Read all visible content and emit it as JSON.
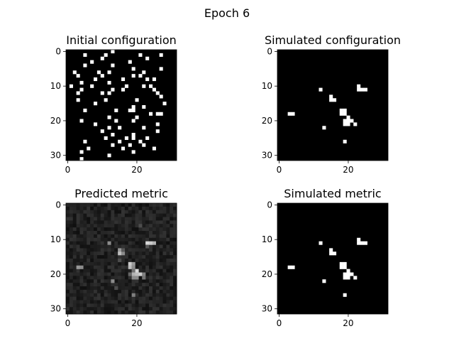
{
  "figure": {
    "suptitle": "Epoch 6"
  },
  "chart_data": [
    {
      "type": "heatmap",
      "title": "Initial configuration",
      "xlim": [
        -0.5,
        31.5
      ],
      "ylim": [
        31.5,
        -0.5
      ],
      "xticks": [
        0,
        20
      ],
      "yticks": [
        0,
        10,
        20,
        30
      ],
      "colormap": "gray",
      "background_value": 0,
      "cells": [
        [
          29,
          4
        ],
        [
          31,
          4
        ],
        [
          30,
          12
        ],
        [
          29,
          19
        ],
        [
          27,
          13
        ],
        [
          25,
          23
        ],
        [
          28,
          6
        ],
        [
          28,
          16
        ],
        [
          28,
          25
        ],
        [
          27,
          18
        ],
        [
          27,
          22
        ],
        [
          26,
          5
        ],
        [
          26,
          15
        ],
        [
          26,
          21
        ],
        [
          25,
          11
        ],
        [
          25,
          17
        ],
        [
          25,
          19
        ],
        [
          23,
          10
        ],
        [
          24,
          19
        ],
        [
          24,
          13
        ],
        [
          22,
          12
        ],
        [
          22,
          15
        ],
        [
          21,
          8
        ],
        [
          21,
          26
        ],
        [
          20,
          4
        ],
        [
          20,
          14
        ],
        [
          20,
          19
        ],
        [
          19,
          12
        ],
        [
          19,
          20
        ],
        [
          18,
          24
        ],
        [
          18,
          26
        ],
        [
          18,
          27
        ],
        [
          17,
          5
        ],
        [
          17,
          14
        ],
        [
          17,
          18
        ],
        [
          17,
          19
        ],
        [
          16,
          19
        ],
        [
          16,
          22
        ],
        [
          15,
          28
        ],
        [
          15,
          8
        ],
        [
          14,
          3
        ],
        [
          14,
          11
        ],
        [
          14,
          20
        ],
        [
          13,
          27
        ],
        [
          12,
          10
        ],
        [
          12,
          12
        ],
        [
          12,
          26
        ],
        [
          11,
          4
        ],
        [
          11,
          13
        ],
        [
          11,
          16
        ],
        [
          11,
          25
        ],
        [
          10,
          24
        ],
        [
          10,
          7
        ],
        [
          10,
          1
        ],
        [
          10,
          17
        ],
        [
          10,
          22
        ],
        [
          9,
          4
        ],
        [
          9,
          12
        ],
        [
          8,
          8
        ],
        [
          8,
          16
        ],
        [
          8,
          23
        ],
        [
          8,
          25
        ],
        [
          7,
          19
        ],
        [
          7,
          10
        ],
        [
          7,
          21
        ],
        [
          6,
          2
        ],
        [
          6,
          12
        ],
        [
          6,
          22
        ],
        [
          5,
          19
        ],
        [
          4,
          13
        ],
        [
          4,
          5
        ],
        [
          3,
          7
        ],
        [
          3,
          18
        ],
        [
          2,
          10
        ],
        [
          2,
          23
        ],
        [
          1,
          5
        ],
        [
          1,
          11
        ],
        [
          1,
          21
        ],
        [
          1,
          27
        ],
        [
          0,
          13
        ],
        [
          5,
          27
        ],
        [
          6,
          9
        ],
        [
          7,
          3
        ],
        [
          12,
          3
        ],
        [
          22,
          22
        ],
        [
          23,
          26
        ]
      ]
    },
    {
      "type": "heatmap",
      "title": "Simulated configuration",
      "xlim": [
        -0.5,
        31.5
      ],
      "ylim": [
        31.5,
        -0.5
      ],
      "xticks": [
        0,
        20
      ],
      "yticks": [
        0,
        10,
        20,
        30
      ],
      "colormap": "gray",
      "background_value": 0,
      "cells": [
        [
          10,
          23
        ],
        [
          11,
          23
        ],
        [
          11,
          24
        ],
        [
          11,
          25
        ],
        [
          11,
          12
        ],
        [
          13,
          15
        ],
        [
          14,
          15
        ],
        [
          14,
          16
        ],
        [
          17,
          18
        ],
        [
          17,
          19
        ],
        [
          18,
          18
        ],
        [
          18,
          19
        ],
        [
          18,
          3
        ],
        [
          18,
          4
        ],
        [
          19,
          20
        ],
        [
          20,
          19
        ],
        [
          20,
          20
        ],
        [
          20,
          21
        ],
        [
          21,
          19
        ],
        [
          21,
          20
        ],
        [
          21,
          22
        ],
        [
          22,
          13
        ],
        [
          26,
          19
        ]
      ]
    },
    {
      "type": "heatmap",
      "title": "Predicted metric",
      "xlim": [
        -0.5,
        31.5
      ],
      "ylim": [
        31.5,
        -0.5
      ],
      "xticks": [
        0,
        20
      ],
      "yticks": [
        0,
        10,
        20,
        30
      ],
      "colormap": "gray",
      "background_value": 0.13,
      "noise": 0.07,
      "cells": [
        [
          11,
          23,
          0.85
        ],
        [
          11,
          24,
          0.8
        ],
        [
          11,
          25,
          0.7
        ],
        [
          11,
          12,
          0.55
        ],
        [
          12,
          23,
          0.35
        ],
        [
          13,
          15,
          0.6
        ],
        [
          14,
          15,
          0.75
        ],
        [
          14,
          16,
          0.55
        ],
        [
          13,
          16,
          0.35
        ],
        [
          17,
          18,
          0.8
        ],
        [
          17,
          19,
          0.6
        ],
        [
          18,
          18,
          0.75
        ],
        [
          18,
          19,
          0.55
        ],
        [
          18,
          3,
          0.6
        ],
        [
          18,
          4,
          0.55
        ],
        [
          19,
          20,
          0.85
        ],
        [
          19,
          19,
          0.45
        ],
        [
          20,
          19,
          0.7
        ],
        [
          20,
          20,
          0.75
        ],
        [
          20,
          21,
          0.8
        ],
        [
          20,
          22,
          0.5
        ],
        [
          21,
          19,
          0.55
        ],
        [
          21,
          20,
          0.55
        ],
        [
          21,
          22,
          0.45
        ],
        [
          20,
          18,
          0.4
        ],
        [
          22,
          13,
          0.55
        ],
        [
          26,
          19,
          0.5
        ],
        [
          6,
          21,
          0.3
        ],
        [
          16,
          15,
          0.3
        ],
        [
          24,
          14,
          0.3
        ]
      ]
    },
    {
      "type": "heatmap",
      "title": "Simulated metric",
      "xlim": [
        -0.5,
        31.5
      ],
      "ylim": [
        31.5,
        -0.5
      ],
      "xticks": [
        0,
        20
      ],
      "yticks": [
        0,
        10,
        20,
        30
      ],
      "colormap": "gray",
      "background_value": 0,
      "cells": [
        [
          10,
          23
        ],
        [
          11,
          23
        ],
        [
          11,
          24
        ],
        [
          11,
          25
        ],
        [
          11,
          12
        ],
        [
          13,
          15
        ],
        [
          14,
          15
        ],
        [
          14,
          16
        ],
        [
          17,
          18
        ],
        [
          17,
          19
        ],
        [
          18,
          18
        ],
        [
          18,
          19
        ],
        [
          18,
          3
        ],
        [
          18,
          4
        ],
        [
          19,
          20
        ],
        [
          20,
          19
        ],
        [
          20,
          20
        ],
        [
          20,
          21
        ],
        [
          21,
          19
        ],
        [
          21,
          20
        ],
        [
          21,
          22
        ],
        [
          22,
          13
        ],
        [
          26,
          19
        ]
      ]
    }
  ]
}
